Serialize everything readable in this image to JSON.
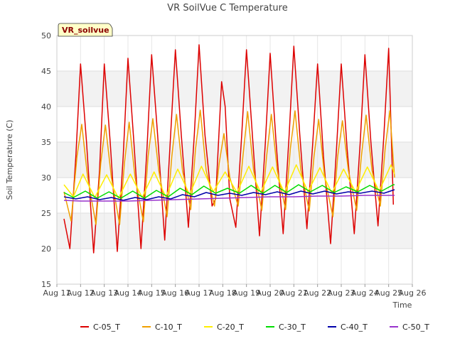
{
  "chart_data": {
    "type": "line",
    "title": "VR SoilVue C Temperature",
    "xlabel": "Time",
    "ylabel": "Soil Temperature (C)",
    "badge": "VR_soilvue",
    "xlim": [
      11,
      26
    ],
    "ylim": [
      15,
      50
    ],
    "x_ticks": [
      11,
      12,
      13,
      14,
      15,
      16,
      17,
      18,
      19,
      20,
      21,
      22,
      23,
      24,
      25,
      26
    ],
    "x_tick_labels": [
      "Aug 11",
      "Aug 12",
      "Aug 13",
      "Aug 14",
      "Aug 15",
      "Aug 16",
      "Aug 17",
      "Aug 18",
      "Aug 19",
      "Aug 20",
      "Aug 21",
      "Aug 22",
      "Aug 23",
      "Aug 24",
      "Aug 25",
      "Aug 26"
    ],
    "y_ticks": [
      15,
      20,
      25,
      30,
      35,
      40,
      45,
      50
    ],
    "grid": true,
    "legend_position": "bottom",
    "series": [
      {
        "name": "C-05_T",
        "color": "#dd0000",
        "x": [
          11.3,
          11.55,
          11.8,
          12.0,
          12.25,
          12.55,
          12.8,
          13.0,
          13.25,
          13.55,
          13.8,
          14.0,
          14.25,
          14.55,
          14.8,
          15.0,
          15.25,
          15.55,
          15.8,
          16.0,
          16.25,
          16.55,
          16.8,
          17.0,
          17.25,
          17.55,
          17.7,
          17.95,
          18.1,
          18.3,
          18.55,
          18.8,
          19.0,
          19.25,
          19.55,
          19.8,
          20.0,
          20.25,
          20.55,
          20.8,
          21.0,
          21.25,
          21.55,
          21.8,
          22.0,
          22.25,
          22.55,
          22.8,
          23.0,
          23.25,
          23.55,
          23.8,
          24.0,
          24.25,
          24.55,
          24.8,
          25.0,
          25.2
        ],
        "y": [
          24.2,
          20.0,
          33.0,
          46.0,
          35.0,
          19.4,
          31.0,
          46.0,
          35.0,
          19.6,
          33.0,
          46.8,
          35.0,
          20.0,
          34.0,
          47.3,
          36.0,
          21.2,
          36.0,
          48.0,
          36.0,
          23.0,
          36.0,
          48.7,
          36.0,
          26.0,
          27.0,
          43.5,
          40.0,
          27.0,
          23.0,
          36.0,
          48.0,
          36.0,
          21.8,
          35.0,
          47.5,
          35.0,
          22.1,
          36.0,
          48.5,
          36.0,
          22.8,
          35.0,
          46.0,
          33.0,
          20.7,
          34.0,
          46.0,
          34.0,
          22.1,
          35.0,
          47.3,
          35.0,
          23.2,
          36.0,
          48.2,
          26.2
        ]
      },
      {
        "name": "C-10_T",
        "color": "#f0a000",
        "x": [
          11.3,
          11.6,
          11.85,
          12.05,
          12.3,
          12.65,
          12.85,
          13.05,
          13.3,
          13.65,
          13.85,
          14.05,
          14.3,
          14.65,
          14.85,
          15.05,
          15.3,
          15.65,
          15.85,
          16.05,
          16.3,
          16.65,
          16.85,
          17.05,
          17.3,
          17.65,
          17.85,
          18.05,
          18.3,
          18.65,
          18.85,
          19.05,
          19.3,
          19.65,
          19.85,
          20.05,
          20.3,
          20.65,
          20.85,
          21.05,
          21.3,
          21.65,
          21.85,
          22.05,
          22.3,
          22.65,
          22.85,
          23.05,
          23.3,
          23.65,
          23.85,
          24.05,
          24.3,
          24.65,
          24.85,
          25.05,
          25.25
        ],
        "y": [
          28.0,
          23.9,
          33.0,
          37.5,
          30.0,
          23.4,
          32.0,
          37.4,
          30.0,
          23.4,
          32.0,
          37.8,
          30.0,
          23.8,
          33.0,
          38.3,
          31.0,
          24.5,
          33.0,
          38.9,
          31.0,
          25.5,
          34.0,
          39.5,
          31.0,
          26.0,
          32.0,
          36.2,
          30.0,
          26.0,
          33.0,
          39.3,
          31.0,
          25.4,
          33.0,
          38.9,
          31.0,
          25.5,
          34.0,
          39.4,
          31.0,
          25.3,
          33.0,
          38.2,
          30.0,
          24.5,
          33.0,
          38.0,
          31.0,
          25.4,
          33.0,
          38.8,
          31.0,
          26.0,
          34.0,
          39.4,
          30.0
        ]
      },
      {
        "name": "C-20_T",
        "color": "#ffee00",
        "x": [
          11.3,
          11.7,
          12.1,
          12.6,
          13.1,
          13.6,
          14.1,
          14.6,
          15.1,
          15.6,
          16.1,
          16.6,
          17.1,
          17.6,
          18.1,
          18.6,
          19.1,
          19.6,
          20.1,
          20.6,
          21.1,
          21.6,
          22.1,
          22.6,
          23.1,
          23.6,
          24.1,
          24.6,
          25.1,
          25.25
        ],
        "y": [
          29.0,
          27.3,
          30.5,
          27.2,
          30.4,
          27.1,
          30.5,
          27.2,
          30.8,
          27.3,
          31.2,
          27.6,
          31.6,
          28.0,
          30.8,
          27.9,
          31.6,
          27.9,
          31.5,
          27.9,
          31.8,
          28.0,
          31.4,
          27.8,
          31.2,
          28.0,
          31.5,
          28.1,
          31.8,
          30.5
        ]
      },
      {
        "name": "C-30_T",
        "color": "#00dd00",
        "x": [
          11.3,
          11.7,
          12.2,
          12.7,
          13.2,
          13.7,
          14.2,
          14.7,
          15.2,
          15.7,
          16.2,
          16.7,
          17.2,
          17.7,
          18.2,
          18.7,
          19.2,
          19.7,
          20.2,
          20.7,
          21.2,
          21.7,
          22.2,
          22.7,
          23.2,
          23.7,
          24.2,
          24.7,
          25.2,
          25.25
        ],
        "y": [
          27.9,
          27.2,
          28.1,
          27.1,
          28.0,
          27.1,
          28.1,
          27.1,
          28.2,
          27.3,
          28.5,
          27.6,
          28.8,
          27.8,
          28.5,
          27.8,
          28.9,
          27.8,
          28.9,
          27.9,
          29.0,
          28.0,
          28.9,
          27.9,
          28.7,
          28.0,
          28.9,
          28.1,
          29.0,
          29.0
        ]
      },
      {
        "name": "C-40_T",
        "color": "#0000aa",
        "x": [
          11.3,
          11.8,
          12.3,
          12.8,
          13.3,
          13.8,
          14.3,
          14.8,
          15.3,
          15.8,
          16.3,
          16.8,
          17.3,
          17.8,
          18.3,
          18.8,
          19.3,
          19.8,
          20.3,
          20.8,
          21.3,
          21.8,
          22.3,
          22.8,
          23.3,
          23.8,
          24.3,
          24.8,
          25.25
        ],
        "y": [
          27.3,
          27.0,
          27.3,
          26.9,
          27.2,
          26.8,
          27.2,
          26.9,
          27.3,
          27.0,
          27.6,
          27.3,
          27.9,
          27.5,
          27.8,
          27.5,
          27.9,
          27.6,
          28.0,
          27.6,
          28.1,
          27.7,
          28.1,
          27.7,
          28.0,
          27.8,
          28.1,
          27.8,
          28.3
        ]
      },
      {
        "name": "C-50_T",
        "color": "#9933cc",
        "x": [
          11.3,
          12.0,
          13.0,
          14.0,
          15.0,
          16.0,
          17.0,
          18.0,
          19.0,
          20.0,
          21.0,
          22.0,
          23.0,
          24.0,
          25.0,
          25.25
        ],
        "y": [
          26.8,
          26.7,
          26.7,
          26.7,
          26.8,
          26.9,
          27.0,
          27.1,
          27.2,
          27.3,
          27.3,
          27.4,
          27.4,
          27.5,
          27.5,
          27.5
        ]
      }
    ]
  }
}
